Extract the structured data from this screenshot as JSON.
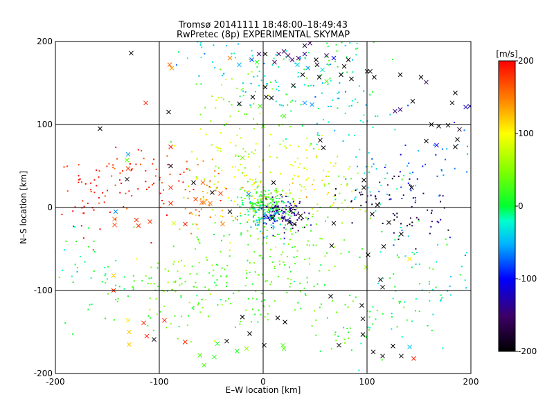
{
  "chart_data": {
    "type": "scatter",
    "title": "Tromsø 20141111 18:48:00–18:49:43",
    "subtitle": "RwPretec (8p) EXPERIMENTAL SKYMAP",
    "xlabel": "E–W location [km]",
    "ylabel": "N–S location [km]",
    "xlim": [
      -200,
      200
    ],
    "ylim": [
      -200,
      200
    ],
    "xticks": [
      -200,
      -100,
      0,
      100,
      200
    ],
    "yticks": [
      -200,
      -100,
      0,
      100,
      200
    ],
    "grid": true,
    "colorbar": {
      "label": "[m/s]",
      "min": -200,
      "max": 200,
      "ticks": [
        200,
        100,
        0,
        -100,
        -200
      ],
      "colormap": "rainbow (black → purple → blue → cyan → green → yellow → red)"
    },
    "series": [
      {
        "marker": "cross",
        "points": [
          {
            "x": -127,
            "y": 186,
            "v": -200
          },
          {
            "x": -88,
            "y": 168,
            "v": 140
          },
          {
            "x": -90,
            "y": 172,
            "v": 160
          },
          {
            "x": -113,
            "y": 126,
            "v": 190
          },
          {
            "x": -91,
            "y": 115,
            "v": -200
          },
          {
            "x": -157,
            "y": 95,
            "v": -200
          },
          {
            "x": -89,
            "y": 73,
            "v": 190
          },
          {
            "x": -89,
            "y": 50,
            "v": -190
          },
          {
            "x": -130,
            "y": 64,
            "v": -60
          },
          {
            "x": -131,
            "y": 57,
            "v": 40
          },
          {
            "x": -130,
            "y": 47,
            "v": 180
          },
          {
            "x": -131,
            "y": 34,
            "v": -200
          },
          {
            "x": -142,
            "y": -5,
            "v": -60
          },
          {
            "x": -143,
            "y": -14,
            "v": 160
          },
          {
            "x": -143,
            "y": -21,
            "v": 175
          },
          {
            "x": -122,
            "y": -15,
            "v": 180
          },
          {
            "x": -120,
            "y": -22,
            "v": 180
          },
          {
            "x": -109,
            "y": -17,
            "v": 180
          },
          {
            "x": -89,
            "y": 24,
            "v": 185
          },
          {
            "x": -89,
            "y": 5,
            "v": 185
          },
          {
            "x": -65,
            "y": 10,
            "v": 175
          },
          {
            "x": -59,
            "y": 6,
            "v": 160
          },
          {
            "x": -57,
            "y": 6,
            "v": 155
          },
          {
            "x": -51,
            "y": 5,
            "v": 150
          },
          {
            "x": -49,
            "y": 18,
            "v": -200
          },
          {
            "x": -67,
            "y": 30,
            "v": -200
          },
          {
            "x": -58,
            "y": 30,
            "v": 160
          },
          {
            "x": -41,
            "y": 17,
            "v": 175
          },
          {
            "x": -86,
            "y": -19,
            "v": 80
          },
          {
            "x": -75,
            "y": -20,
            "v": 190
          },
          {
            "x": -32,
            "y": -5,
            "v": -200
          },
          {
            "x": -144,
            "y": -82,
            "v": 120
          },
          {
            "x": -144,
            "y": -100,
            "v": 185
          },
          {
            "x": -115,
            "y": -139,
            "v": 185
          },
          {
            "x": -130,
            "y": -136,
            "v": 110
          },
          {
            "x": -129,
            "y": -150,
            "v": 120
          },
          {
            "x": -112,
            "y": -155,
            "v": 185
          },
          {
            "x": -105,
            "y": -159,
            "v": -200
          },
          {
            "x": -95,
            "y": -136,
            "v": 190
          },
          {
            "x": -129,
            "y": -165,
            "v": 120
          },
          {
            "x": -75,
            "y": -162,
            "v": 185
          },
          {
            "x": -61,
            "y": -178,
            "v": 30
          },
          {
            "x": -57,
            "y": -190,
            "v": 30
          },
          {
            "x": -47,
            "y": -180,
            "v": 20
          },
          {
            "x": -44,
            "y": -164,
            "v": 10
          },
          {
            "x": -35,
            "y": -161,
            "v": -200
          },
          {
            "x": -25,
            "y": -173,
            "v": 10
          },
          {
            "x": -20,
            "y": -132,
            "v": -200
          },
          {
            "x": -16,
            "y": -170,
            "v": 60
          },
          {
            "x": -13,
            "y": -152,
            "v": -200
          },
          {
            "x": 1,
            "y": -166,
            "v": -200
          },
          {
            "x": 14,
            "y": -133,
            "v": -200
          },
          {
            "x": 21,
            "y": -138,
            "v": -200
          },
          {
            "x": 19,
            "y": -166,
            "v": 30
          },
          {
            "x": 20,
            "y": -170,
            "v": 30
          },
          {
            "x": 73,
            "y": -166,
            "v": -200
          },
          {
            "x": 96,
            "y": -134,
            "v": -200
          },
          {
            "x": 96,
            "y": -153,
            "v": -200
          },
          {
            "x": 95,
            "y": -118,
            "v": -200
          },
          {
            "x": 106,
            "y": -174,
            "v": -200
          },
          {
            "x": 115,
            "y": -179,
            "v": -200
          },
          {
            "x": 125,
            "y": -167,
            "v": -200
          },
          {
            "x": 133,
            "y": -179,
            "v": -200
          },
          {
            "x": 141,
            "y": -168,
            "v": -40
          },
          {
            "x": 145,
            "y": -182,
            "v": 190
          },
          {
            "x": 65,
            "y": -107,
            "v": -200
          },
          {
            "x": 115,
            "y": -96,
            "v": -200
          },
          {
            "x": 113,
            "y": -87,
            "v": -200
          },
          {
            "x": 99,
            "y": -72,
            "v": 60
          },
          {
            "x": 101,
            "y": -57,
            "v": -200
          },
          {
            "x": 116,
            "y": -47,
            "v": -200
          },
          {
            "x": 141,
            "y": -62,
            "v": 110
          },
          {
            "x": 133,
            "y": -32,
            "v": -200
          },
          {
            "x": 121,
            "y": -18,
            "v": -200
          },
          {
            "x": 105,
            "y": -8,
            "v": -200
          },
          {
            "x": 110,
            "y": 3,
            "v": -200
          },
          {
            "x": 97,
            "y": 24,
            "v": -200
          },
          {
            "x": 97,
            "y": 33,
            "v": -200
          },
          {
            "x": 143,
            "y": 24,
            "v": -200
          },
          {
            "x": 157,
            "y": 80,
            "v": -200
          },
          {
            "x": 167,
            "y": 75,
            "v": -110
          },
          {
            "x": 185,
            "y": 73,
            "v": -200
          },
          {
            "x": 187,
            "y": 82,
            "v": -200
          },
          {
            "x": 189,
            "y": 94,
            "v": -180
          },
          {
            "x": 178,
            "y": 99,
            "v": -200
          },
          {
            "x": 169,
            "y": 98,
            "v": -200
          },
          {
            "x": 162,
            "y": 100,
            "v": -200
          },
          {
            "x": 185,
            "y": 138,
            "v": -200
          },
          {
            "x": 182,
            "y": 126,
            "v": -200
          },
          {
            "x": 195,
            "y": 121,
            "v": -120
          },
          {
            "x": 199,
            "y": 122,
            "v": -120
          },
          {
            "x": 152,
            "y": 157,
            "v": -200
          },
          {
            "x": 157,
            "y": 151,
            "v": -160
          },
          {
            "x": 132,
            "y": 160,
            "v": -200
          },
          {
            "x": 144,
            "y": 128,
            "v": -200
          },
          {
            "x": 127,
            "y": 116,
            "v": -140
          },
          {
            "x": 132,
            "y": 118,
            "v": -140
          },
          {
            "x": 100,
            "y": 164,
            "v": -200
          },
          {
            "x": 103,
            "y": 164,
            "v": -200
          },
          {
            "x": 107,
            "y": 157,
            "v": -200
          },
          {
            "x": 85,
            "y": 155,
            "v": -200
          },
          {
            "x": 75,
            "y": 160,
            "v": -200
          },
          {
            "x": 78,
            "y": 170,
            "v": -200
          },
          {
            "x": 82,
            "y": 178,
            "v": -200
          },
          {
            "x": 68,
            "y": 180,
            "v": -100
          },
          {
            "x": 61,
            "y": 183,
            "v": -150
          },
          {
            "x": 51,
            "y": 178,
            "v": -200
          },
          {
            "x": 52,
            "y": 172,
            "v": -180
          },
          {
            "x": 40,
            "y": 185,
            "v": -140
          },
          {
            "x": 34,
            "y": 180,
            "v": -150
          },
          {
            "x": 28,
            "y": 178,
            "v": -150
          },
          {
            "x": 24,
            "y": 183,
            "v": -150
          },
          {
            "x": 20,
            "y": 188,
            "v": -150
          },
          {
            "x": 15,
            "y": 185,
            "v": -150
          },
          {
            "x": 11,
            "y": 175,
            "v": -150
          },
          {
            "x": 2,
            "y": 185,
            "v": -200
          },
          {
            "x": -4,
            "y": 185,
            "v": -150
          },
          {
            "x": 40,
            "y": 195,
            "v": -180
          },
          {
            "x": 45,
            "y": 198,
            "v": -150
          },
          {
            "x": 38,
            "y": 160,
            "v": -200
          },
          {
            "x": 43,
            "y": 168,
            "v": -60
          },
          {
            "x": 29,
            "y": 147,
            "v": -200
          },
          {
            "x": 33,
            "y": 172,
            "v": -40
          },
          {
            "x": 61,
            "y": 152,
            "v": 30
          },
          {
            "x": 57,
            "y": 166,
            "v": -30
          },
          {
            "x": 54,
            "y": 157,
            "v": -200
          },
          {
            "x": -6,
            "y": 175,
            "v": 20
          },
          {
            "x": -11,
            "y": 178,
            "v": -80
          },
          {
            "x": -32,
            "y": 180,
            "v": 150
          },
          {
            "x": -23,
            "y": 172,
            "v": -50
          },
          {
            "x": -10,
            "y": 133,
            "v": -200
          },
          {
            "x": -23,
            "y": 125,
            "v": -200
          },
          {
            "x": 3,
            "y": 133,
            "v": -200
          },
          {
            "x": -3,
            "y": 122,
            "v": 30
          },
          {
            "x": 40,
            "y": 126,
            "v": -60
          },
          {
            "x": 47,
            "y": 124,
            "v": -60
          },
          {
            "x": 2,
            "y": 145,
            "v": -200
          },
          {
            "x": 8,
            "y": 132,
            "v": -200
          },
          {
            "x": 55,
            "y": 81,
            "v": -200
          },
          {
            "x": 58,
            "y": 72,
            "v": -200
          },
          {
            "x": 0,
            "y": 98,
            "v": 40
          },
          {
            "x": 20,
            "y": 110,
            "v": 30
          },
          {
            "x": -20,
            "y": 60,
            "v": 50
          },
          {
            "x": 27,
            "y": -4,
            "v": -200
          },
          {
            "x": 36,
            "y": -10,
            "v": -200
          },
          {
            "x": 30,
            "y": -20,
            "v": -200
          },
          {
            "x": 25,
            "y": -18,
            "v": -200
          },
          {
            "x": 9,
            "y": -13,
            "v": -200
          },
          {
            "x": 68,
            "y": -19,
            "v": -200
          },
          {
            "x": 66,
            "y": -46,
            "v": -200
          },
          {
            "x": 10,
            "y": 30,
            "v": -200
          },
          {
            "x": -14,
            "y": 16,
            "v": -60
          },
          {
            "x": -39,
            "y": -20,
            "v": 150
          }
        ]
      },
      {
        "marker": "dot",
        "density": "dense",
        "description_points": [
          {
            "x": 5,
            "y": 0,
            "v": 20
          },
          {
            "x": 10,
            "y": 5,
            "v": 30
          },
          {
            "x": 15,
            "y": -5,
            "v": -120
          },
          {
            "x": 20,
            "y": -10,
            "v": -140
          },
          {
            "x": 0,
            "y": -10,
            "v": -40
          },
          {
            "x": -10,
            "y": 5,
            "v": 10
          },
          {
            "x": 25,
            "y": 35,
            "v": 90
          },
          {
            "x": 30,
            "y": 50,
            "v": 80
          },
          {
            "x": 40,
            "y": 25,
            "v": 95
          },
          {
            "x": -40,
            "y": 0,
            "v": 120
          },
          {
            "x": -60,
            "y": 10,
            "v": 150
          },
          {
            "x": -90,
            "y": 30,
            "v": 180
          },
          {
            "x": -120,
            "y": 40,
            "v": 190
          },
          {
            "x": -150,
            "y": 30,
            "v": 190
          },
          {
            "x": -170,
            "y": 5,
            "v": 200
          },
          {
            "x": -50,
            "y": -70,
            "v": 20
          },
          {
            "x": -60,
            "y": -100,
            "v": 30
          },
          {
            "x": -80,
            "y": -130,
            "v": 40
          },
          {
            "x": -150,
            "y": -100,
            "v": 10
          },
          {
            "x": -180,
            "y": -60,
            "v": 0
          },
          {
            "x": 20,
            "y": -60,
            "v": 20
          },
          {
            "x": 50,
            "y": -100,
            "v": 20
          },
          {
            "x": 80,
            "y": -150,
            "v": 10
          },
          {
            "x": 100,
            "y": 40,
            "v": -30
          },
          {
            "x": 130,
            "y": 20,
            "v": -100
          },
          {
            "x": 150,
            "y": 0,
            "v": -160
          },
          {
            "x": 110,
            "y": 0,
            "v": -190
          },
          {
            "x": 170,
            "y": 50,
            "v": -60
          },
          {
            "x": 60,
            "y": 120,
            "v": -20
          },
          {
            "x": 90,
            "y": 130,
            "v": -40
          },
          {
            "x": 20,
            "y": 150,
            "v": -20
          },
          {
            "x": 0,
            "y": 170,
            "v": -30
          },
          {
            "x": 60,
            "y": 190,
            "v": 10
          },
          {
            "x": 70,
            "y": 180,
            "v": -10
          },
          {
            "x": -60,
            "y": 190,
            "v": -30
          },
          {
            "x": -30,
            "y": 140,
            "v": 60
          },
          {
            "x": -20,
            "y": 100,
            "v": 50
          },
          {
            "x": -50,
            "y": 60,
            "v": 70
          },
          {
            "x": -20,
            "y": 40,
            "v": 90
          },
          {
            "x": -10,
            "y": -40,
            "v": 40
          },
          {
            "x": 10,
            "y": -80,
            "v": 30
          },
          {
            "x": -20,
            "y": -120,
            "v": 20
          },
          {
            "x": 70,
            "y": 20,
            "v": 60
          },
          {
            "x": 50,
            "y": -30,
            "v": 40
          },
          {
            "x": 140,
            "y": -60,
            "v": -10
          },
          {
            "x": 170,
            "y": -90,
            "v": -20
          },
          {
            "x": 130,
            "y": -130,
            "v": 10
          },
          {
            "x": -100,
            "y": -80,
            "v": 50
          }
        ]
      }
    ]
  }
}
